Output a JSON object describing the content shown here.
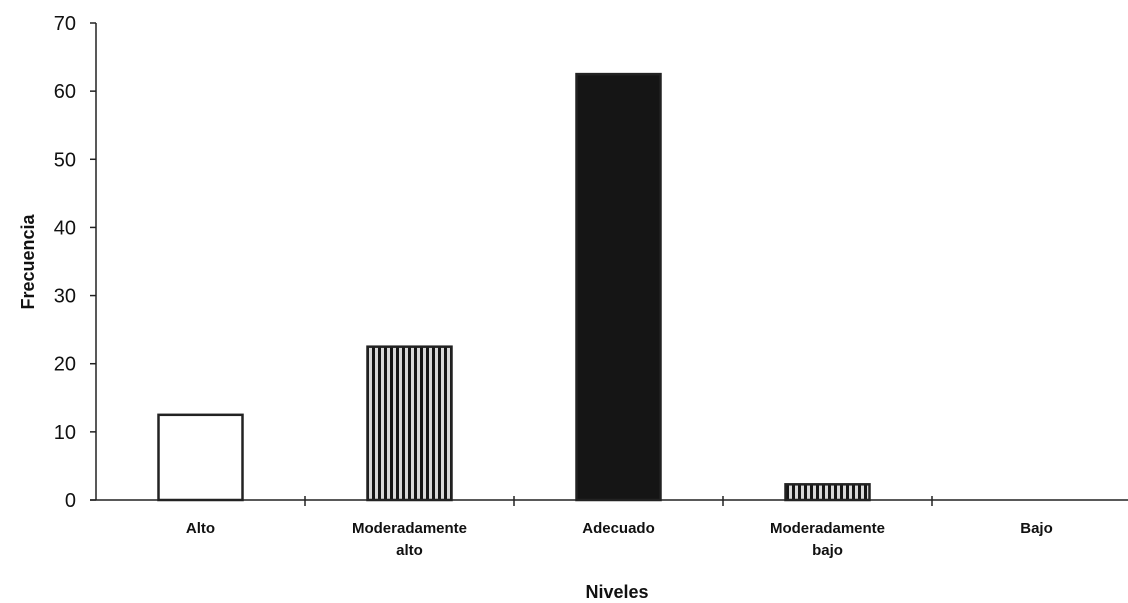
{
  "chart_data": {
    "type": "bar",
    "categories": [
      [
        "Alto"
      ],
      [
        "Moderadamente",
        "alto"
      ],
      [
        "Adecuado"
      ],
      [
        "Moderadamente",
        "bajo"
      ],
      [
        "Bajo"
      ]
    ],
    "values": [
      12.5,
      22.5,
      62.5,
      2.3,
      0
    ],
    "fills": [
      "white",
      "vertical-stripes",
      "black",
      "vertical-stripes",
      "white"
    ],
    "xlabel": "Niveles",
    "ylabel": "Frecuencia",
    "ylim": [
      0,
      70
    ],
    "yticks": [
      0,
      10,
      20,
      30,
      40,
      50,
      60,
      70
    ],
    "grid": false,
    "colors": {
      "bar_dark": "#151515",
      "bar_stroke": "#222222",
      "stripe_light": "#cfcfcf"
    }
  }
}
